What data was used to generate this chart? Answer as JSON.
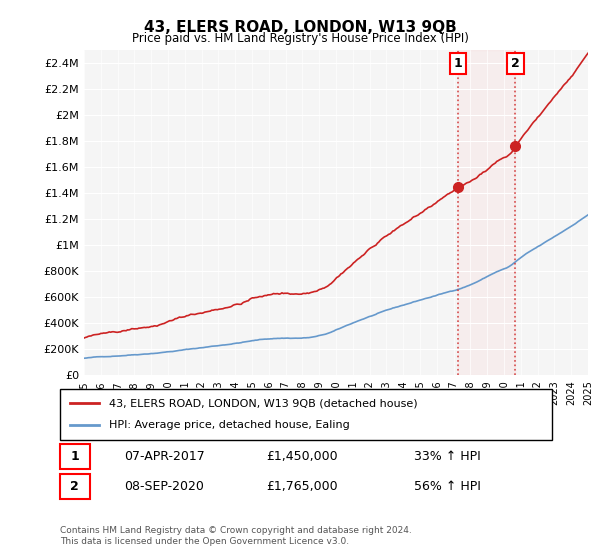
{
  "title": "43, ELERS ROAD, LONDON, W13 9QB",
  "subtitle": "Price paid vs. HM Land Registry's House Price Index (HPI)",
  "ylabel_ticks": [
    "£0",
    "£200K",
    "£400K",
    "£600K",
    "£800K",
    "£1M",
    "£1.2M",
    "£1.4M",
    "£1.6M",
    "£1.8M",
    "£2M",
    "£2.2M",
    "£2.4M"
  ],
  "ylabel_values": [
    0,
    200000,
    400000,
    600000,
    800000,
    1000000,
    1200000,
    1400000,
    1600000,
    1800000,
    2000000,
    2200000,
    2400000
  ],
  "x_start_year": 1995,
  "x_end_year": 2025,
  "sale1_year": 2017.27,
  "sale1_price": 1450000,
  "sale1_label": "1",
  "sale1_date": "07-APR-2017",
  "sale1_pct": "33% ↑ HPI",
  "sale2_year": 2020.68,
  "sale2_price": 1765000,
  "sale2_label": "2",
  "sale2_date": "08-SEP-2020",
  "sale2_pct": "56% ↑ HPI",
  "hpi_line_color": "#6699cc",
  "price_line_color": "#cc2222",
  "marker_color": "#cc2222",
  "vline_color": "#cc2222",
  "legend_label_price": "43, ELERS ROAD, LONDON, W13 9QB (detached house)",
  "legend_label_hpi": "HPI: Average price, detached house, Ealing",
  "footnote": "Contains HM Land Registry data © Crown copyright and database right 2024.\nThis data is licensed under the Open Government Licence v3.0.",
  "background_color": "#ffffff",
  "plot_bg_color": "#f5f5f5"
}
